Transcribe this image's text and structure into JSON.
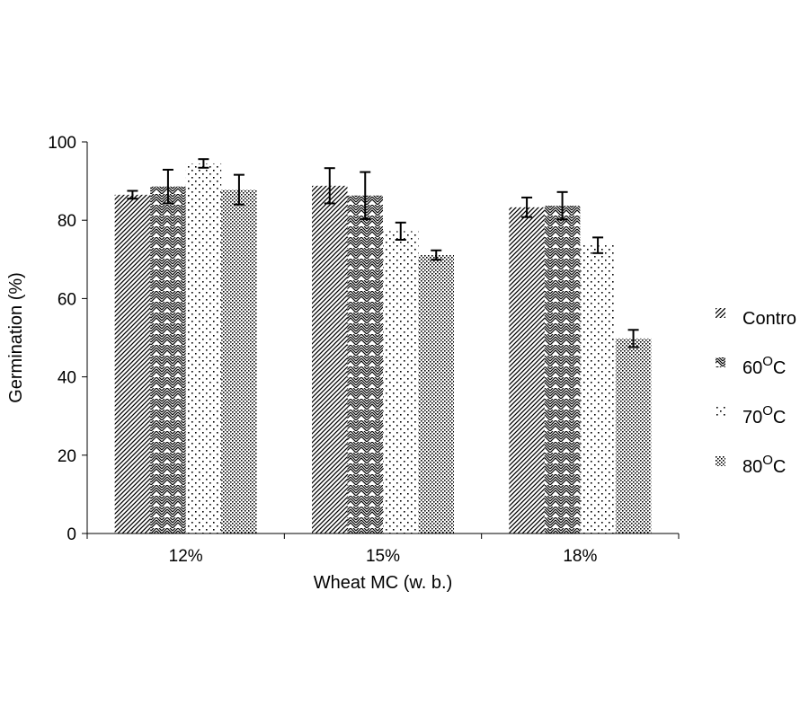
{
  "chart_data": {
    "type": "bar",
    "title": "",
    "xlabel": "Wheat MC (w. b.)",
    "ylabel": "Germination (%)",
    "ylim": [
      0,
      100
    ],
    "yticks": [
      0,
      20,
      40,
      60,
      80,
      100
    ],
    "ytick_labels": [
      "0",
      "20",
      "40",
      "60",
      "80",
      "100"
    ],
    "categories": [
      "12%",
      "15%",
      "18%"
    ],
    "legend_position": "right",
    "series": [
      {
        "name": "Contro",
        "sup": "",
        "pattern": "diag",
        "values": [
          86.5,
          88.8,
          83.3
        ],
        "errors": [
          1.0,
          4.5,
          2.5
        ]
      },
      {
        "name": "60",
        "sup": "O",
        "suffix": "C",
        "pattern": "zigzag",
        "values": [
          88.6,
          86.3,
          83.7
        ],
        "errors": [
          4.3,
          6.0,
          3.5
        ]
      },
      {
        "name": "70",
        "sup": "O",
        "suffix": "C",
        "pattern": "sparse-dots",
        "values": [
          94.5,
          77.2,
          73.6
        ],
        "errors": [
          1.1,
          2.2,
          2.0
        ]
      },
      {
        "name": "80",
        "sup": "O",
        "suffix": "C",
        "pattern": "dense-dots",
        "values": [
          87.8,
          71.1,
          49.8
        ],
        "errors": [
          3.8,
          1.2,
          2.2
        ]
      }
    ]
  }
}
